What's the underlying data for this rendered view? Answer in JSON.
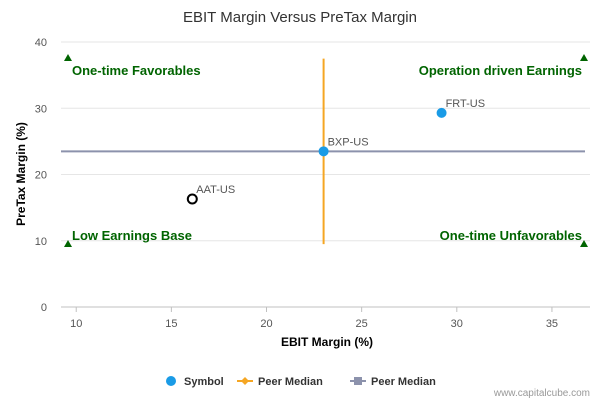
{
  "chart_data": {
    "type": "scatter",
    "title": "EBIT Margin Versus PreTax Margin",
    "xlabel": "EBIT Margin (%)",
    "ylabel": "PreTax Margin (%)",
    "xlim": [
      9.2,
      37
    ],
    "ylim": [
      0,
      40
    ],
    "xticks": [
      10,
      15,
      20,
      25,
      30,
      35
    ],
    "yticks": [
      0,
      10,
      20,
      30,
      40
    ],
    "grid": "horizontal",
    "points": [
      {
        "label": "FRT-US",
        "x": 29.2,
        "y": 29.3,
        "style": "filled",
        "color": "#1a9be6"
      },
      {
        "label": "BXP-US",
        "x": 23.0,
        "y": 23.5,
        "style": "filled",
        "color": "#1a9be6"
      },
      {
        "label": "AAT-US",
        "x": 16.1,
        "y": 16.3,
        "style": "hollow",
        "color": "#000000"
      }
    ],
    "peer_median_x": 23.0,
    "peer_median_x_range": [
      9.5,
      37.5
    ],
    "peer_median_y": 23.5,
    "quadrants": [
      {
        "label": "One-time Favorables",
        "position": "top-left"
      },
      {
        "label": "Operation driven Earnings",
        "position": "top-right"
      },
      {
        "label": "Low Earnings Base",
        "position": "bottom-left"
      },
      {
        "label": "One-time Unfavorables",
        "position": "bottom-right"
      }
    ],
    "legend": {
      "placement": "bottom-center",
      "items": [
        {
          "label": "Symbol",
          "marker": "circle",
          "color": "#1a9be6"
        },
        {
          "label": "Peer Median",
          "marker": "line-diamond",
          "color": "#f5a623"
        },
        {
          "label": "Peer Median",
          "marker": "line-square",
          "color": "#8c92ac"
        }
      ]
    },
    "colors": {
      "quadrant_text": "#006400",
      "vertical_median": "#f5a623",
      "horizontal_median": "#8c92ac",
      "grid": "#e6e6e6"
    }
  },
  "watermark": "www.capitalcube.com"
}
